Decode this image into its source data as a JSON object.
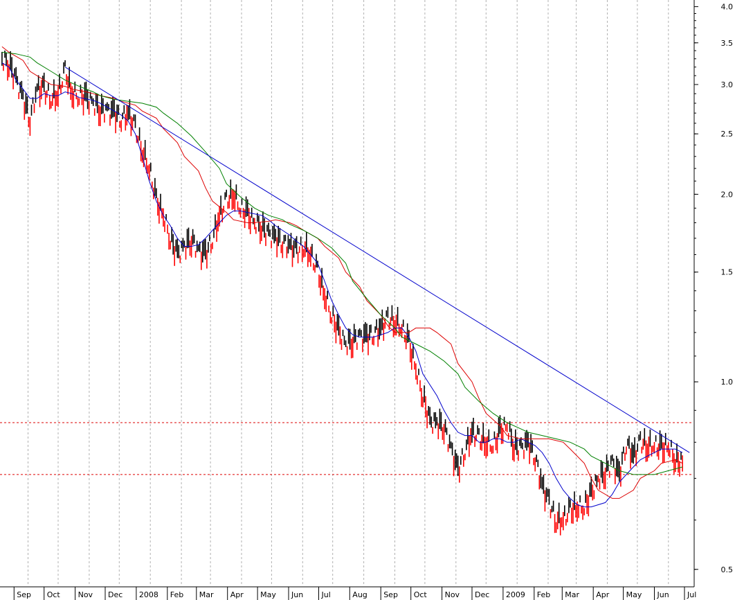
{
  "chart_data": {
    "type": "line",
    "title": "",
    "subtitle": "",
    "xlabel": "",
    "ylabel": "",
    "yscale": "log",
    "ylim": [
      0.47,
      4.1
    ],
    "y_ticks": [
      0.5,
      1.0,
      1.5,
      2.0,
      2.5,
      3.0,
      3.5,
      4.0
    ],
    "y_tick_labels": [
      "0.5",
      "1.0",
      "1.5",
      "2.0",
      "2.5",
      "3.0",
      "3.5",
      "4.0"
    ],
    "x_tick_labels": [
      "Sep",
      "Oct",
      "Nov",
      "Dec",
      "2008",
      "Feb",
      "Mar",
      "Apr",
      "May",
      "Jun",
      "Jul",
      "Aug",
      "Sep",
      "Oct",
      "Nov",
      "Dec",
      "2009",
      "Feb",
      "Mar",
      "Apr",
      "May",
      "Jun",
      "Jul"
    ],
    "grid": {
      "vertical": true,
      "horizontal": false,
      "style": "dotted"
    },
    "legend": "none",
    "colors": {
      "price_up": "#000000",
      "price_down": "#ff0000",
      "ma_short": "#0000cc",
      "ma_medium": "#dd0000",
      "ma_long": "#008000",
      "trendline": "#0000cc",
      "level_lines": "#dd0000",
      "grid": "#b0b0b0"
    },
    "price": {
      "x": [
        "2007-08-20",
        "2007-08-27",
        "2007-09-03",
        "2007-09-10",
        "2007-09-17",
        "2007-09-24",
        "2007-10-01",
        "2007-10-08",
        "2007-10-15",
        "2007-10-22",
        "2007-10-29",
        "2007-11-05",
        "2007-11-12",
        "2007-11-19",
        "2007-11-26",
        "2007-12-03",
        "2007-12-10",
        "2007-12-17",
        "2007-12-24",
        "2007-12-31",
        "2008-01-07",
        "2008-01-14",
        "2008-01-21",
        "2008-01-28",
        "2008-02-04",
        "2008-02-11",
        "2008-02-18",
        "2008-02-25",
        "2008-03-03",
        "2008-03-10",
        "2008-03-17",
        "2008-03-24",
        "2008-03-31",
        "2008-04-07",
        "2008-04-14",
        "2008-04-21",
        "2008-04-28",
        "2008-05-05",
        "2008-05-12",
        "2008-05-19",
        "2008-05-26",
        "2008-06-02",
        "2008-06-09",
        "2008-06-16",
        "2008-06-23",
        "2008-06-30",
        "2008-07-07",
        "2008-07-14",
        "2008-07-21",
        "2008-07-28",
        "2008-08-04",
        "2008-08-11",
        "2008-08-18",
        "2008-08-25",
        "2008-09-01",
        "2008-09-08",
        "2008-09-15",
        "2008-09-22",
        "2008-09-29",
        "2008-10-06",
        "2008-10-13",
        "2008-10-20",
        "2008-10-27",
        "2008-11-03",
        "2008-11-10",
        "2008-11-17",
        "2008-11-24",
        "2008-12-01",
        "2008-12-08",
        "2008-12-15",
        "2008-12-22",
        "2008-12-29",
        "2009-01-05",
        "2009-01-12",
        "2009-01-19",
        "2009-01-26",
        "2009-02-02",
        "2009-02-09",
        "2009-02-16",
        "2009-02-23",
        "2009-03-02",
        "2009-03-09",
        "2009-03-16",
        "2009-03-23",
        "2009-03-30",
        "2009-04-06",
        "2009-04-13",
        "2009-04-20",
        "2009-04-27",
        "2009-05-04",
        "2009-05-11",
        "2009-05-18",
        "2009-05-25",
        "2009-06-01",
        "2009-06-08",
        "2009-06-15",
        "2009-06-22",
        "2009-06-29"
      ],
      "close": [
        3.3,
        3.25,
        3.05,
        2.85,
        2.65,
        2.95,
        2.95,
        2.85,
        2.9,
        3.15,
        2.9,
        2.88,
        2.85,
        2.8,
        2.75,
        2.72,
        2.7,
        2.65,
        2.7,
        2.55,
        2.35,
        2.2,
        1.95,
        1.85,
        1.7,
        1.6,
        1.65,
        1.7,
        1.62,
        1.6,
        1.7,
        1.85,
        1.95,
        2.0,
        1.9,
        1.85,
        1.8,
        1.78,
        1.72,
        1.7,
        1.68,
        1.65,
        1.62,
        1.65,
        1.6,
        1.5,
        1.38,
        1.28,
        1.2,
        1.15,
        1.17,
        1.18,
        1.18,
        1.2,
        1.22,
        1.26,
        1.25,
        1.22,
        1.15,
        1.05,
        0.95,
        0.86,
        0.86,
        0.85,
        0.78,
        0.72,
        0.78,
        0.83,
        0.81,
        0.8,
        0.79,
        0.83,
        0.85,
        0.79,
        0.78,
        0.8,
        0.76,
        0.68,
        0.64,
        0.6,
        0.6,
        0.62,
        0.63,
        0.63,
        0.66,
        0.7,
        0.72,
        0.74,
        0.71,
        0.8,
        0.76,
        0.8,
        0.79,
        0.79,
        0.78,
        0.79,
        0.75,
        0.74
      ]
    },
    "moving_averages": [
      {
        "color_key": "ma_short",
        "values": [
          3.25,
          3.2,
          3.05,
          2.95,
          2.85,
          2.85,
          2.9,
          2.88,
          2.88,
          2.92,
          2.9,
          2.86,
          2.83,
          2.8,
          2.76,
          2.72,
          2.68,
          2.62,
          2.5,
          2.3,
          2.1,
          1.95,
          1.85,
          1.78,
          1.7,
          1.65,
          1.65,
          1.66,
          1.7,
          1.75,
          1.8,
          1.85,
          1.88,
          1.88,
          1.87,
          1.85,
          1.82,
          1.78,
          1.75,
          1.72,
          1.68,
          1.65,
          1.6,
          1.55,
          1.45,
          1.35,
          1.28,
          1.22,
          1.19,
          1.18,
          1.18,
          1.18,
          1.19,
          1.2,
          1.22,
          1.22,
          1.18,
          1.12,
          1.03,
          0.95,
          0.9,
          0.86,
          0.83,
          0.82,
          0.82,
          0.8,
          0.8,
          0.81,
          0.81,
          0.8,
          0.8,
          0.81,
          0.8,
          0.79,
          0.77,
          0.74,
          0.7,
          0.67,
          0.65,
          0.635,
          0.63,
          0.63,
          0.64,
          0.66,
          0.69,
          0.71,
          0.73,
          0.75,
          0.76,
          0.77,
          0.78,
          0.78,
          0.78,
          0.77
        ]
      },
      {
        "color_key": "ma_medium",
        "values": [
          3.45,
          3.38,
          3.28,
          3.15,
          3.05,
          3.0,
          2.98,
          2.95,
          2.92,
          2.9,
          2.88,
          2.85,
          2.82,
          2.78,
          2.72,
          2.65,
          2.55,
          2.42,
          2.3,
          2.18,
          2.05,
          1.95,
          1.87,
          1.82,
          1.8,
          1.8,
          1.81,
          1.82,
          1.8,
          1.78,
          1.75,
          1.7,
          1.65,
          1.58,
          1.5,
          1.42,
          1.35,
          1.28,
          1.23,
          1.2,
          1.2,
          1.22,
          1.22,
          1.2,
          1.15,
          1.07,
          1.0,
          0.94,
          0.89,
          0.85,
          0.82,
          0.81,
          0.81,
          0.81,
          0.81,
          0.8,
          0.78,
          0.74,
          0.7,
          0.67,
          0.65,
          0.65,
          0.67,
          0.7,
          0.72,
          0.74,
          0.75,
          0.74
        ]
      },
      {
        "color_key": "ma_long",
        "values": [
          3.38,
          3.36,
          3.32,
          3.25,
          3.15,
          3.05,
          2.98,
          2.92,
          2.88,
          2.84,
          2.82,
          2.8,
          2.76,
          2.7,
          2.6,
          2.48,
          2.34,
          2.2,
          2.08,
          1.98,
          1.9,
          1.85,
          1.82,
          1.79,
          1.75,
          1.7,
          1.64,
          1.55,
          1.45,
          1.36,
          1.28,
          1.22,
          1.18,
          1.15,
          1.12,
          1.08,
          1.03,
          0.98,
          0.93,
          0.89,
          0.86,
          0.84,
          0.83,
          0.82,
          0.81,
          0.8,
          0.78,
          0.76,
          0.74,
          0.72,
          0.71,
          0.71,
          0.71,
          0.72,
          0.73
        ]
      }
    ],
    "trendline": {
      "from": {
        "date": "2007-10-22",
        "value": 3.2
      },
      "to": {
        "date": "2009-07-06",
        "value": 0.77
      }
    },
    "horizontal_levels": [
      0.86,
      0.71
    ]
  }
}
